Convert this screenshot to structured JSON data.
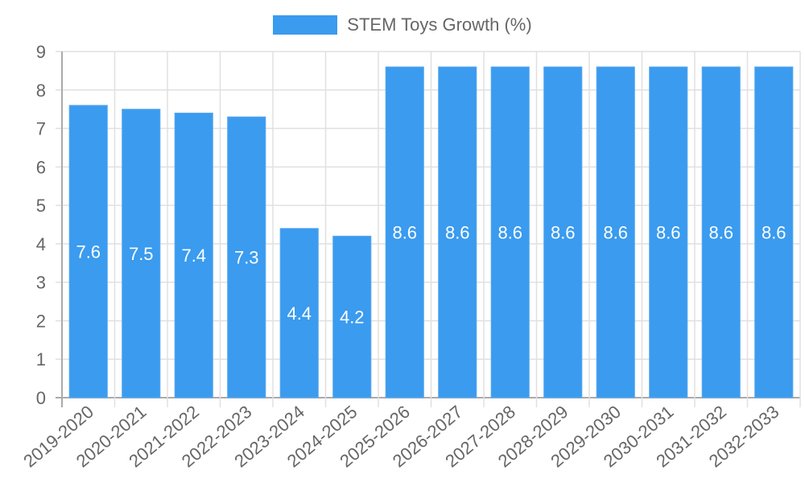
{
  "chart_data": {
    "type": "bar",
    "title": "",
    "legend": [
      {
        "label": "STEM Toys Growth (%)",
        "color": "#3a9bef"
      }
    ],
    "categories": [
      "2019-2020",
      "2020-2021",
      "2021-2022",
      "2022-2023",
      "2023-2024",
      "2024-2025",
      "2025-2026",
      "2026-2027",
      "2027-2028",
      "2028-2029",
      "2029-2030",
      "2030-2031",
      "2031-2032",
      "2032-2033"
    ],
    "series": [
      {
        "name": "STEM Toys Growth (%)",
        "values": [
          7.6,
          7.5,
          7.4,
          7.3,
          4.4,
          4.2,
          8.6,
          8.6,
          8.6,
          8.6,
          8.6,
          8.6,
          8.6,
          8.6
        ]
      }
    ],
    "data_labels": [
      "7.6",
      "7.5",
      "7.4",
      "7.3",
      "4.4",
      "4.2",
      "8.6",
      "8.6",
      "8.6",
      "8.6",
      "8.6",
      "8.6",
      "8.6",
      "8.6"
    ],
    "xlabel": "",
    "ylabel": "",
    "ylim": [
      0,
      9
    ],
    "yticks": [
      "0",
      "1",
      "2",
      "3",
      "4",
      "5",
      "6",
      "7",
      "8",
      "9"
    ],
    "grid": true,
    "legend_position": "top"
  }
}
